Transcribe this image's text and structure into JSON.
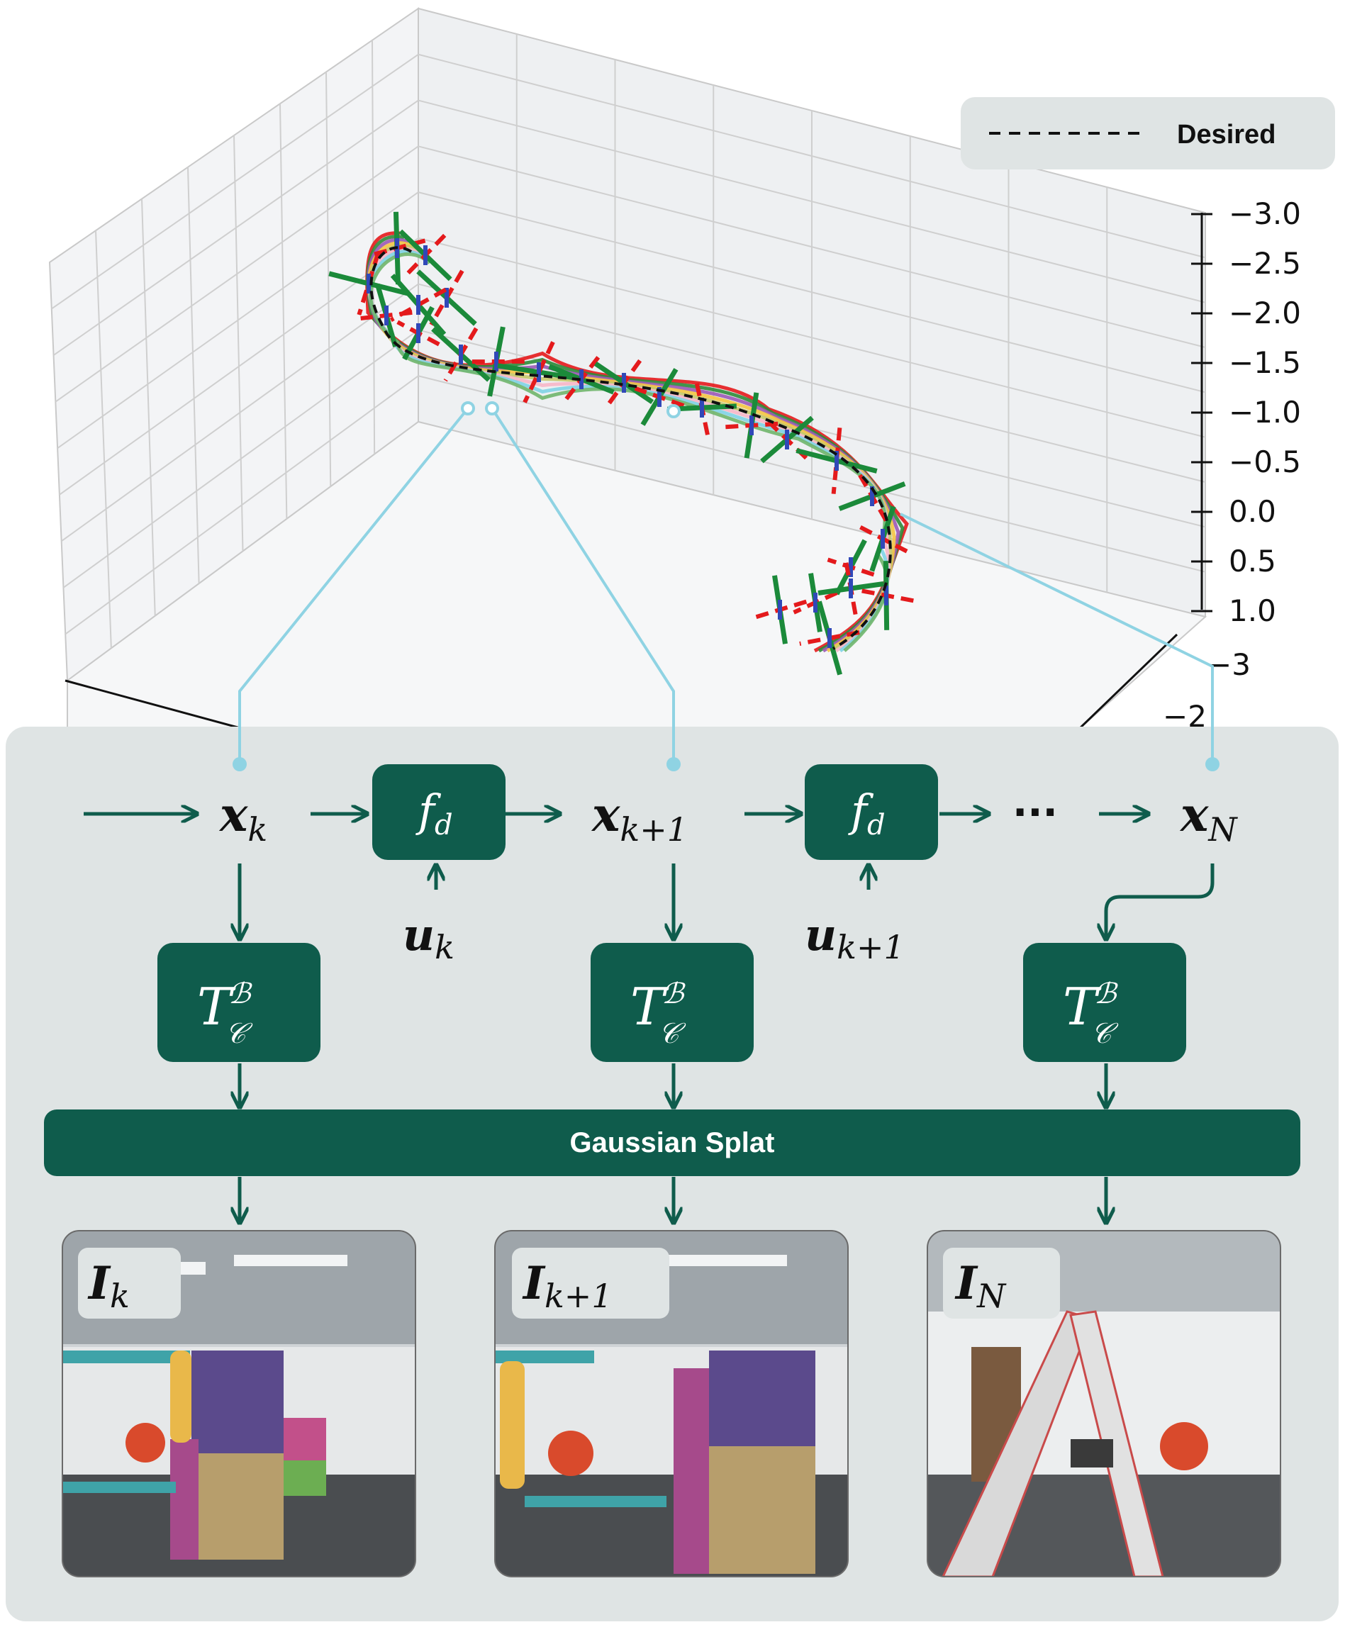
{
  "plot": {
    "legend_label": "Desired",
    "z_ticks": [
      "−3.0",
      "−2.5",
      "−2.0",
      "−1.5",
      "−1.0",
      "−0.5",
      "0.0",
      "0.5",
      "1.0"
    ],
    "y_ticks": [
      "−3",
      "−2"
    ]
  },
  "pipeline": {
    "state_main": [
      "x",
      "x",
      "x"
    ],
    "state_sub": [
      "k",
      "k+1",
      "N"
    ],
    "dynamics_main": "f",
    "dynamics_sub": "d",
    "input_main": [
      "u",
      "u"
    ],
    "input_sub": [
      "k",
      "k+1"
    ],
    "ellipsis": "···",
    "transform_main": "T",
    "transform_sup": "ℬ",
    "transform_sub": "𝒞",
    "splat_label": "Gaussian Splat",
    "image_main": [
      "I",
      "I",
      "I"
    ],
    "image_sub": [
      "k",
      "k+1",
      "N"
    ]
  },
  "colors": {
    "box": "#0f5c4c",
    "panel": "#dfe4e4",
    "connector": "#8fd3e3",
    "trajectories": [
      "#e41a1c",
      "#2e8b3a",
      "#9b59b6",
      "#f4c542",
      "#c5c86a",
      "#f7b6c8",
      "#7fd3e6",
      "#6fb56b"
    ]
  }
}
